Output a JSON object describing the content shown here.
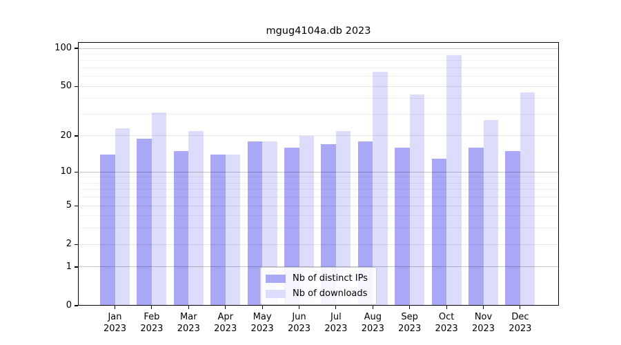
{
  "chart_data": {
    "type": "bar",
    "title": "mgug4104a.db 2023",
    "categories": [
      "Jan",
      "Feb",
      "Mar",
      "Apr",
      "May",
      "Jun",
      "Jul",
      "Aug",
      "Sep",
      "Oct",
      "Nov",
      "Dec"
    ],
    "x_tick_second_line": "2023",
    "series": [
      {
        "name": "Nb of distinct IPs",
        "color": "#a8a8f6",
        "values": [
          14,
          19,
          15,
          14,
          18,
          16,
          17,
          18,
          16,
          13,
          16,
          15
        ]
      },
      {
        "name": "Nb of downloads",
        "color": "#dcdcfb",
        "values": [
          23,
          31,
          22,
          14,
          18,
          20,
          22,
          65,
          43,
          88,
          27,
          45
        ]
      }
    ],
    "y_axis": {
      "scale": "log10(1+value)",
      "tick_labels": [
        0,
        1,
        2,
        5,
        10,
        20,
        50,
        100
      ],
      "decade_gridlines": [
        1,
        10,
        100
      ],
      "mid_gridlines": [
        2,
        5,
        20,
        50
      ],
      "minor_gridlines": [
        3,
        4,
        6,
        7,
        8,
        9,
        30,
        40,
        60,
        70,
        80,
        90
      ],
      "ylim": [
        0,
        109
      ],
      "grid": true
    },
    "legend": {
      "position": "lower center",
      "entries": [
        "Nb of distinct IPs",
        "Nb of downloads"
      ]
    },
    "colors": {
      "background": "#ffffff",
      "spine": "#000000",
      "text": "#000000",
      "grid_decade": "#c6c6c6",
      "grid_mid": "#e6e6e6",
      "grid_minor": "#f1f1f1",
      "legend_border": "#cccccc"
    }
  }
}
